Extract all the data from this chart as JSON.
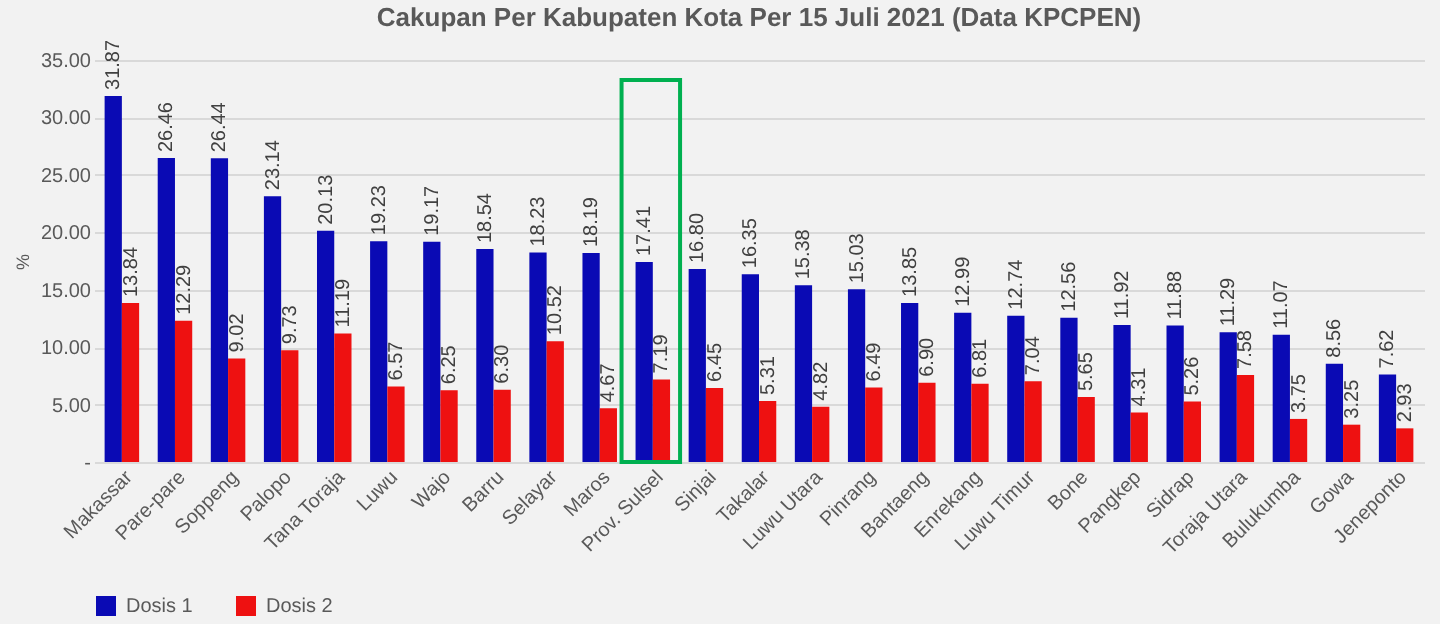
{
  "chart_data": {
    "type": "bar",
    "title": "Cakupan Per Kabupaten Kota Per 15 Juli 2021 (Data KPCPEN)",
    "ylabel": "%",
    "categories": [
      "Makassar",
      "Pare-pare",
      "Soppeng",
      "Palopo",
      "Tana Toraja",
      "Luwu",
      "Wajo",
      "Barru",
      "Selayar",
      "Maros",
      "Prov. Sulsel",
      "Sinjai",
      "Takalar",
      "Luwu Utara",
      "Pinrang",
      "Bantaeng",
      "Enrekang",
      "Luwu Timur",
      "Bone",
      "Pangkep",
      "Sidrap",
      "Toraja Utara",
      "Bulukumba",
      "Gowa",
      "Jeneponto"
    ],
    "series": [
      {
        "name": "Dosis 1",
        "color": "#0a0ab4",
        "values": [
          31.87,
          26.46,
          26.44,
          23.14,
          20.13,
          19.23,
          19.17,
          18.54,
          18.23,
          18.19,
          17.41,
          16.8,
          16.35,
          15.38,
          15.03,
          13.85,
          12.99,
          12.74,
          12.56,
          11.92,
          11.88,
          11.29,
          11.07,
          8.56,
          7.62
        ],
        "value_labels": [
          "31.87",
          "26.46",
          "26.44",
          "23.14",
          "20.13",
          "19.23",
          "19.17",
          "18.54",
          "18.23",
          "18.19",
          "17.41",
          "16.80",
          "16.35",
          "15.38",
          "15.03",
          "13.85",
          "12.99",
          "12.74",
          "12.56",
          "11.92",
          "11.88",
          "11.29",
          "11.07",
          "8.56",
          "7.62"
        ]
      },
      {
        "name": "Dosis 2",
        "color": "#ee1111",
        "values": [
          13.84,
          12.29,
          9.02,
          9.73,
          11.19,
          6.57,
          6.25,
          6.3,
          10.52,
          4.67,
          7.19,
          6.45,
          5.31,
          4.82,
          6.49,
          6.9,
          6.81,
          7.04,
          5.65,
          4.31,
          5.26,
          7.58,
          3.75,
          3.25,
          2.93
        ],
        "value_labels": [
          "13.84",
          "12.29",
          "9.02",
          "9.73",
          "11.19",
          "6.57",
          "6.25",
          "6.30",
          "10.52",
          "4.67",
          "7.19",
          "6.45",
          "5.31",
          "4.82",
          "6.49",
          "6.90",
          "6.81",
          "7.04",
          "5.65",
          "4.31",
          "5.26",
          "7.58",
          "3.75",
          "3.25",
          "2.93"
        ]
      }
    ],
    "ylim": [
      0,
      35
    ],
    "yticks": [
      {
        "value": 0,
        "label": "-"
      },
      {
        "value": 5,
        "label": "5.00"
      },
      {
        "value": 10,
        "label": "10.00"
      },
      {
        "value": 15,
        "label": "15.00"
      },
      {
        "value": 20,
        "label": "20.00"
      },
      {
        "value": 25,
        "label": "25.00"
      },
      {
        "value": 30,
        "label": "30.00"
      },
      {
        "value": 35,
        "label": "35.00"
      }
    ],
    "grid": "y",
    "legend": "bottom"
  }
}
